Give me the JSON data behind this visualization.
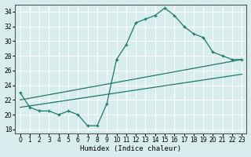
{
  "xlabel": "Humidex (Indice chaleur)",
  "bg_color": "#d8eeee",
  "grid_color": "#ffffff",
  "line_color": "#1a7a6a",
  "xlim": [
    -0.5,
    23.5
  ],
  "ylim": [
    17.5,
    35
  ],
  "xticks": [
    0,
    1,
    2,
    3,
    4,
    5,
    6,
    7,
    8,
    9,
    10,
    11,
    12,
    13,
    14,
    15,
    16,
    17,
    18,
    19,
    20,
    21,
    22,
    23
  ],
  "yticks": [
    18,
    20,
    22,
    24,
    26,
    28,
    30,
    32,
    34
  ],
  "main_curve_x": [
    0,
    1,
    2,
    3,
    4,
    5,
    6,
    7,
    8,
    9,
    10,
    11,
    12,
    13,
    14,
    15,
    16,
    17,
    18,
    19,
    20,
    21,
    22,
    23
  ],
  "main_curve_y": [
    23.0,
    21.0,
    20.5,
    20.5,
    20.0,
    20.5,
    20.0,
    18.5,
    18.5,
    21.5,
    27.5,
    29.5,
    32.5,
    33.0,
    33.5,
    34.5,
    33.5,
    32.0,
    31.0,
    30.5,
    28.5,
    28.0,
    27.5,
    27.5
  ],
  "line1_x": [
    0,
    23
  ],
  "line1_y": [
    22.0,
    27.5
  ],
  "line2_x": [
    0,
    23
  ],
  "line2_y": [
    21.0,
    25.5
  ]
}
